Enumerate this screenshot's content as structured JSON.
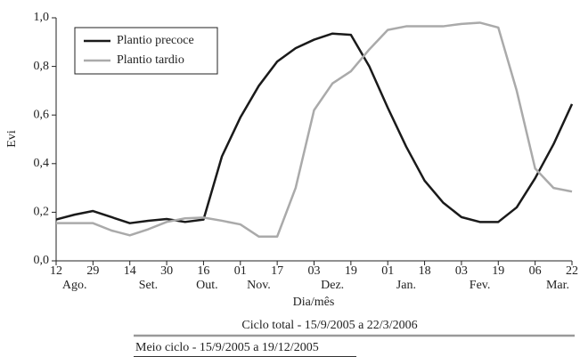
{
  "chart_data": {
    "type": "line",
    "y_label": "Evi",
    "x_label": "Dia/mês",
    "categories": [
      "12",
      null,
      "29",
      null,
      "14",
      null,
      "30",
      null,
      "16",
      null,
      "01",
      null,
      "17",
      null,
      "03",
      null,
      "19",
      null,
      "01",
      null,
      "18",
      null,
      "03",
      null,
      "19",
      null,
      "06",
      null,
      "22"
    ],
    "months": [
      "Ago.",
      "Set.",
      "Out.",
      "Nov.",
      "Dez.",
      "Jan.",
      "Fev.",
      "Mar."
    ],
    "series": [
      {
        "name": "Plantio precoce",
        "color": "#1a1a1a",
        "values": [
          0.17,
          0.19,
          0.205,
          0.18,
          0.155,
          0.165,
          0.172,
          0.16,
          0.17,
          0.43,
          0.59,
          0.72,
          0.82,
          0.875,
          0.91,
          0.935,
          0.93,
          0.8,
          0.63,
          0.47,
          0.33,
          0.24,
          0.18,
          0.16,
          0.16,
          0.22,
          0.34,
          0.48,
          0.645
        ]
      },
      {
        "name": "Plantio tardio",
        "color": "#aaaaaa",
        "values": [
          0.155,
          0.155,
          0.155,
          0.125,
          0.105,
          0.13,
          0.16,
          0.175,
          0.178,
          0.165,
          0.15,
          0.1,
          0.1,
          0.3,
          0.62,
          0.73,
          0.78,
          0.87,
          0.95,
          0.965,
          0.965,
          0.965,
          0.975,
          0.98,
          0.96,
          0.7,
          0.38,
          0.3,
          0.285
        ]
      }
    ],
    "ylim": [
      0,
      1
    ],
    "yticks": [
      {
        "value": 0,
        "label": "0,0"
      },
      {
        "value": 0.2,
        "label": "0,2"
      },
      {
        "value": 0.4,
        "label": "0,4"
      },
      {
        "value": 0.6,
        "label": "0,6"
      },
      {
        "value": 0.8,
        "label": "0,8"
      },
      {
        "value": 1,
        "label": "1,0"
      }
    ],
    "legend": "upper left",
    "annotations": [
      "Ciclo total - 15/9/2005 a 22/3/2006",
      "Meio ciclo - 15/9/2005 a 19/12/2005"
    ]
  }
}
